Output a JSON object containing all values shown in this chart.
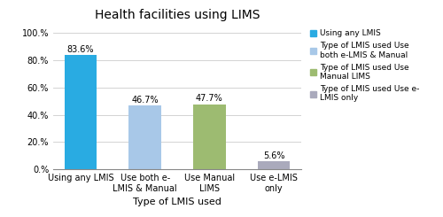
{
  "title": "Health facilities using LIMS",
  "categories": [
    "Using any LMIS",
    "Use both e-\nLMIS & Manual",
    "Use Manual\nLIMS",
    "Use e-LMIS\nonly"
  ],
  "values": [
    83.6,
    46.7,
    47.7,
    5.6
  ],
  "bar_colors": [
    "#29ABE2",
    "#A8C8E8",
    "#9DBB71",
    "#AAAABC"
  ],
  "value_labels": [
    "83.6%",
    "46.7%",
    "47.7%",
    "5.6%"
  ],
  "xlabel": "Type of LMIS used",
  "ylim": [
    0,
    105
  ],
  "yticks": [
    0,
    20,
    40,
    60,
    80,
    100
  ],
  "ytick_labels": [
    "0.%",
    "20.%",
    "40.%",
    "60.%",
    "80.%",
    "100.%"
  ],
  "legend_labels": [
    "Using any LMIS",
    "Type of LMIS used Use\nboth e-LMIS & Manual",
    "Type of LMIS used Use\nManual LIMS",
    "Type of LMIS used Use e-\nLMIS only"
  ],
  "legend_colors": [
    "#29ABE2",
    "#A8C8E8",
    "#9DBB71",
    "#AAAABC"
  ],
  "background_color": "#ffffff",
  "title_fontsize": 10,
  "label_fontsize": 7,
  "xlabel_fontsize": 8,
  "legend_fontsize": 6.5,
  "bar_width": 0.5
}
